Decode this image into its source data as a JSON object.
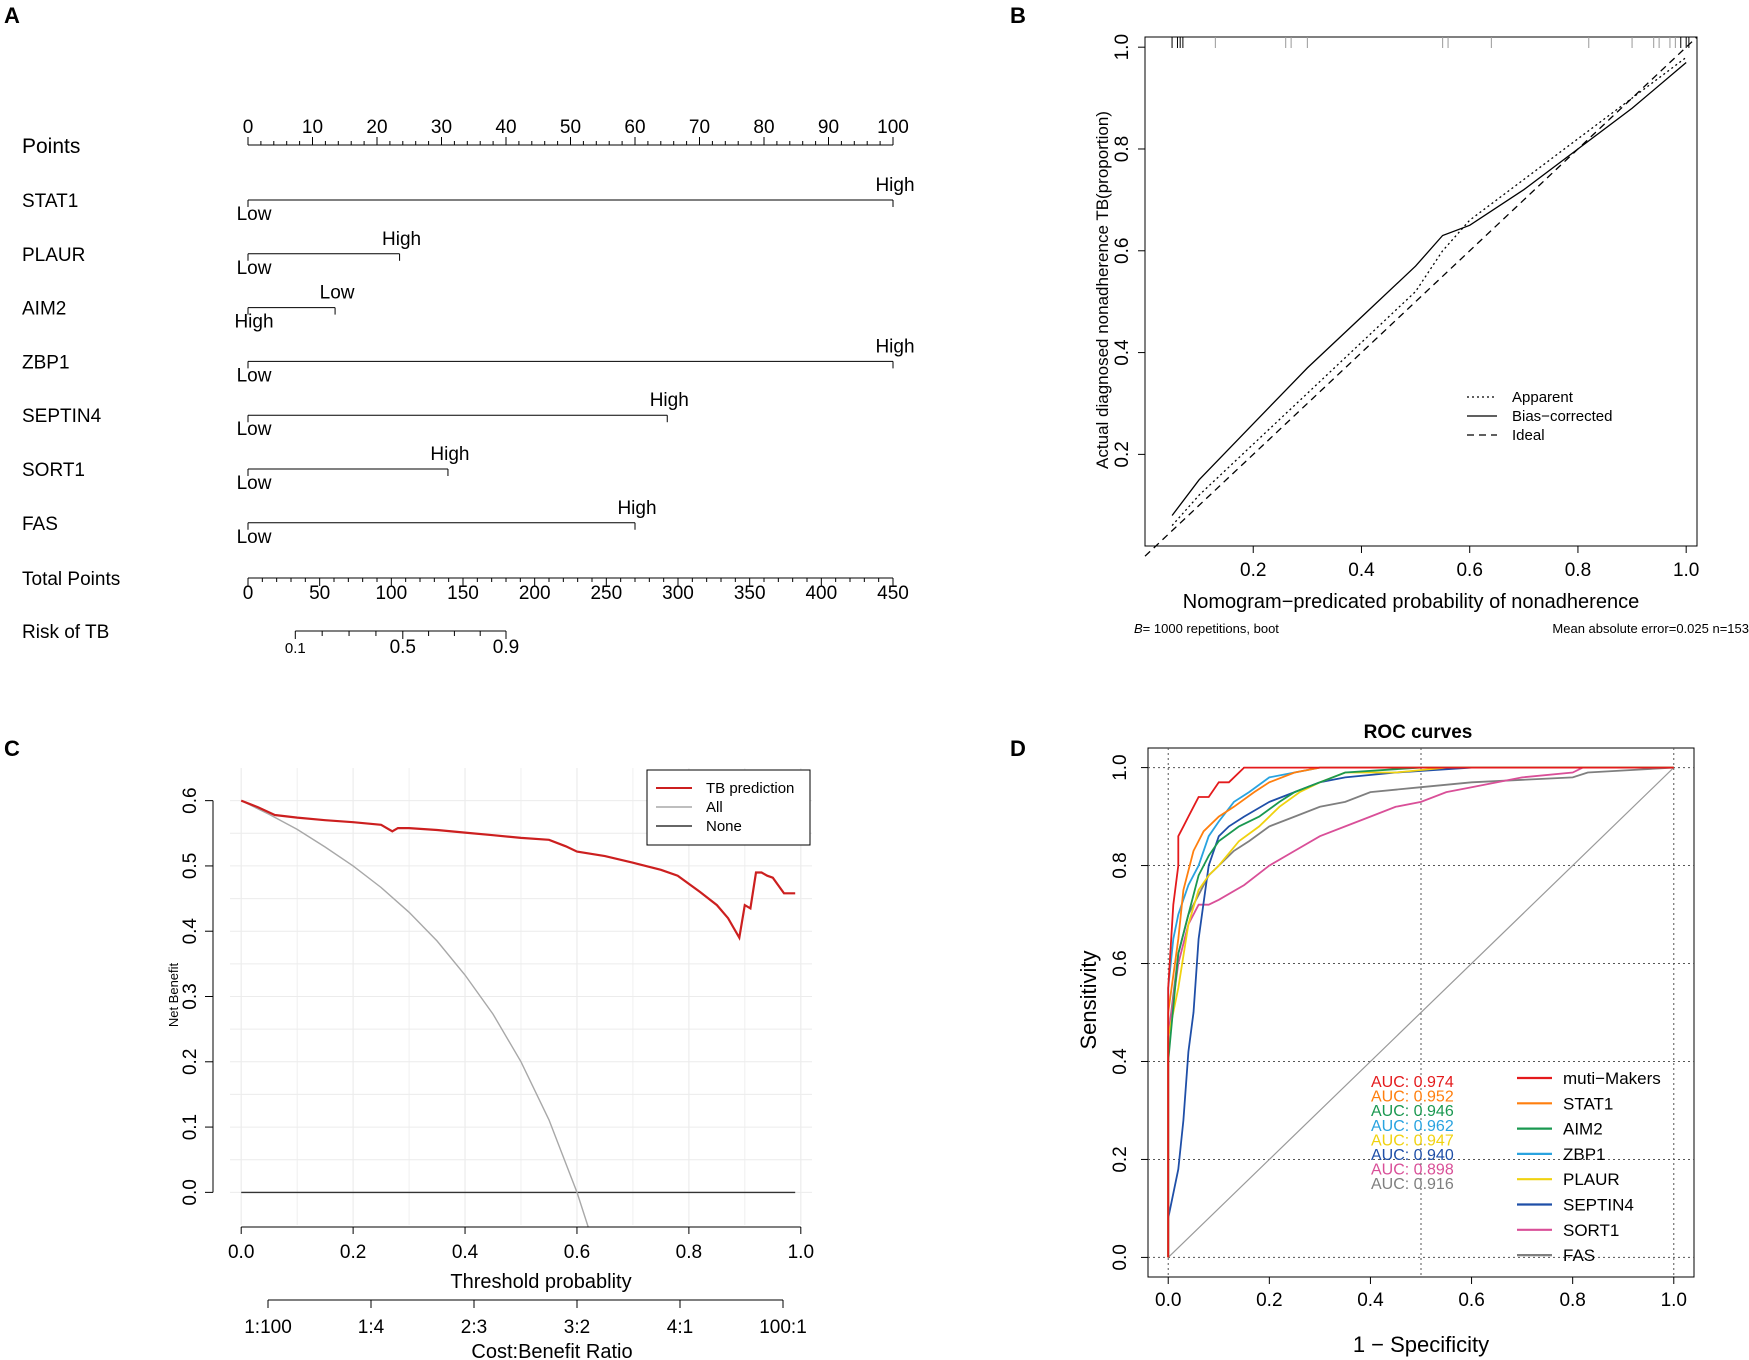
{
  "panel_labels": [
    "A",
    "B",
    "C",
    "D"
  ],
  "nomogram": {
    "points_label": "Points",
    "points_ticks": [
      "0",
      "10",
      "20",
      "30",
      "40",
      "50",
      "60",
      "70",
      "80",
      "90",
      "100"
    ],
    "variables": [
      {
        "name": "STAT1",
        "left": "Low",
        "right": "High",
        "max_points": 100
      },
      {
        "name": "PLAUR",
        "left": "Low",
        "right": "High",
        "max_points": 23.5
      },
      {
        "name": "AIM2",
        "left": "High",
        "right": "Low",
        "max_points": 13.5
      },
      {
        "name": "ZBP1",
        "left": "Low",
        "right": "High",
        "max_points": 100
      },
      {
        "name": "SEPTIN4",
        "left": "Low",
        "right": "High",
        "max_points": 65
      },
      {
        "name": "SORT1",
        "left": "Low",
        "right": "High",
        "max_points": 31
      },
      {
        "name": "FAS",
        "left": "Low",
        "right": "High",
        "max_points": 60
      }
    ],
    "total_label": "Total Points",
    "total_ticks": [
      "0",
      "50",
      "100",
      "150",
      "200",
      "250",
      "300",
      "350",
      "400",
      "450"
    ],
    "risk_label": "Risk of TB",
    "risk_ticks": [
      {
        "label": "0.1",
        "total": 33
      },
      {
        "label": "0.5",
        "total": 108
      },
      {
        "label": "0.9",
        "total": 180
      }
    ]
  },
  "chart_data": [
    {
      "type": "line",
      "title": "",
      "xlabel": "Nomogram−predicated probability of nonadherence",
      "ylabel": "Actual diagnosed nonadherence TB(proportion)",
      "xlim": [
        0.0,
        1.02
      ],
      "ylim": [
        0.02,
        1.02
      ],
      "xticks": [
        "0.2",
        "0.4",
        "0.6",
        "0.8",
        "1.0"
      ],
      "yticks": [
        "0.2",
        "0.4",
        "0.6",
        "0.8",
        "1.0"
      ],
      "footer_left": "= 1000 repetitions, boot",
      "footer_left_prefix": "B",
      "footer_right": "Mean absolute error=0.025 n=153",
      "legend": [
        "Apparent",
        "Bias−corrected",
        "Ideal"
      ],
      "series": [
        {
          "name": "Apparent",
          "x": [
            0.05,
            0.1,
            0.2,
            0.3,
            0.4,
            0.5,
            0.55,
            0.6,
            0.7,
            0.8,
            0.9,
            1.0
          ],
          "y": [
            0.06,
            0.12,
            0.22,
            0.32,
            0.42,
            0.52,
            0.6,
            0.66,
            0.74,
            0.82,
            0.9,
            0.98
          ]
        },
        {
          "name": "Bias−corrected",
          "x": [
            0.05,
            0.1,
            0.2,
            0.3,
            0.4,
            0.5,
            0.55,
            0.6,
            0.7,
            0.8,
            0.9,
            1.0
          ],
          "y": [
            0.08,
            0.15,
            0.26,
            0.37,
            0.47,
            0.57,
            0.63,
            0.65,
            0.72,
            0.8,
            0.88,
            0.97
          ]
        },
        {
          "name": "Ideal",
          "x": [
            0.0,
            1.02
          ],
          "y": [
            0.0,
            1.02
          ]
        }
      ]
    },
    {
      "type": "line",
      "title": "",
      "xlabel": "Threshold probablity",
      "ylabel": "Net Benefit",
      "x2label": "Cost:Benefit Ratio",
      "xlim": [
        -0.02,
        1.02
      ],
      "ylim": [
        -0.05,
        0.65
      ],
      "xticks": [
        "0.0",
        "0.2",
        "0.4",
        "0.6",
        "0.8",
        "1.0"
      ],
      "yticks": [
        "0.0",
        "0.1",
        "0.2",
        "0.3",
        "0.4",
        "0.5",
        "0.6"
      ],
      "ratio_ticks": [
        "1:100",
        "1:4",
        "2:3",
        "3:2",
        "4:1",
        "100:1"
      ],
      "legend": [
        "TB prediction",
        "All",
        "None"
      ],
      "series": [
        {
          "name": "TB prediction",
          "x": [
            0.0,
            0.03,
            0.06,
            0.1,
            0.15,
            0.2,
            0.25,
            0.27,
            0.28,
            0.3,
            0.35,
            0.4,
            0.45,
            0.5,
            0.55,
            0.58,
            0.6,
            0.65,
            0.7,
            0.75,
            0.78,
            0.82,
            0.85,
            0.87,
            0.88,
            0.89,
            0.9,
            0.91,
            0.92,
            0.93,
            0.94,
            0.95,
            0.96,
            0.97,
            0.98,
            0.99
          ],
          "y": [
            0.6,
            0.59,
            0.578,
            0.574,
            0.57,
            0.567,
            0.563,
            0.553,
            0.558,
            0.558,
            0.555,
            0.551,
            0.547,
            0.543,
            0.54,
            0.53,
            0.522,
            0.515,
            0.505,
            0.494,
            0.485,
            0.46,
            0.44,
            0.42,
            0.405,
            0.39,
            0.44,
            0.435,
            0.49,
            0.49,
            0.485,
            0.482,
            0.47,
            0.458,
            0.458,
            0.458
          ]
        },
        {
          "name": "All",
          "x": [
            0.0,
            0.05,
            0.1,
            0.15,
            0.2,
            0.25,
            0.3,
            0.35,
            0.4,
            0.45,
            0.5,
            0.55,
            0.6,
            0.62
          ],
          "y": [
            0.6,
            0.579,
            0.556,
            0.529,
            0.5,
            0.467,
            0.429,
            0.385,
            0.333,
            0.273,
            0.2,
            0.111,
            0.0,
            -0.053
          ]
        },
        {
          "name": "None",
          "x": [
            0.0,
            0.99
          ],
          "y": [
            0.0,
            0.0
          ]
        }
      ]
    },
    {
      "type": "line",
      "title": "ROC curves",
      "xlabel": "1 − Specificity",
      "ylabel": "Sensitivity",
      "xlim": [
        -0.04,
        1.04
      ],
      "ylim": [
        -0.04,
        1.04
      ],
      "xticks": [
        "0.0",
        "0.2",
        "0.4",
        "0.6",
        "0.8",
        "1.0"
      ],
      "yticks": [
        "0.0",
        "0.2",
        "0.4",
        "0.6",
        "0.8",
        "1.0"
      ],
      "series": [
        {
          "name": "muti−Makers",
          "auc": "AUC: 0.974",
          "color": "#e41a1c",
          "x": [
            0,
            0,
            0.01,
            0.02,
            0.02,
            0.03,
            0.04,
            0.05,
            0.06,
            0.08,
            0.1,
            0.12,
            0.15,
            0.2,
            0.3,
            0.5,
            0.8,
            1.0
          ],
          "y": [
            0,
            0.55,
            0.72,
            0.8,
            0.86,
            0.88,
            0.9,
            0.92,
            0.94,
            0.94,
            0.97,
            0.97,
            1,
            1,
            1,
            1,
            1,
            1
          ]
        },
        {
          "name": "STAT1",
          "auc": "AUC: 0.952",
          "color": "#ff7f0e",
          "x": [
            0,
            0,
            0.02,
            0.03,
            0.05,
            0.07,
            0.1,
            0.13,
            0.17,
            0.2,
            0.25,
            0.3,
            0.4,
            0.5,
            0.8,
            1.0
          ],
          "y": [
            0,
            0.5,
            0.65,
            0.75,
            0.83,
            0.87,
            0.9,
            0.92,
            0.95,
            0.97,
            0.99,
            1,
            1,
            1,
            1,
            1
          ]
        },
        {
          "name": "AIM2",
          "auc": "AUC: 0.946",
          "color": "#1a9850",
          "x": [
            0,
            0,
            0.02,
            0.04,
            0.06,
            0.08,
            0.1,
            0.14,
            0.18,
            0.22,
            0.25,
            0.3,
            0.35,
            0.5,
            0.8,
            1.0
          ],
          "y": [
            0,
            0.4,
            0.62,
            0.7,
            0.78,
            0.82,
            0.85,
            0.88,
            0.9,
            0.93,
            0.95,
            0.97,
            0.99,
            1,
            1,
            1
          ]
        },
        {
          "name": "ZBP1",
          "auc": "AUC: 0.962",
          "color": "#29a3e0",
          "x": [
            0,
            0,
            0.01,
            0.02,
            0.04,
            0.06,
            0.08,
            0.1,
            0.13,
            0.16,
            0.2,
            0.25,
            0.3,
            0.4,
            0.6,
            0.8,
            1.0
          ],
          "y": [
            0,
            0.55,
            0.65,
            0.7,
            0.76,
            0.8,
            0.86,
            0.89,
            0.93,
            0.95,
            0.98,
            0.99,
            1,
            1,
            1,
            1,
            1
          ]
        },
        {
          "name": "PLAUR",
          "auc": "AUC: 0.947",
          "color": "#f0d20f",
          "x": [
            0,
            0,
            0.02,
            0.04,
            0.06,
            0.08,
            0.1,
            0.14,
            0.18,
            0.22,
            0.26,
            0.3,
            0.35,
            0.45,
            0.55,
            0.8,
            1.0
          ],
          "y": [
            0,
            0.45,
            0.55,
            0.68,
            0.75,
            0.78,
            0.8,
            0.85,
            0.88,
            0.92,
            0.95,
            0.97,
            0.99,
            0.99,
            1,
            1,
            1
          ]
        },
        {
          "name": "SEPTIN4",
          "auc": "AUC: 0.940",
          "color": "#1f4fa8",
          "x": [
            0,
            0,
            0.02,
            0.03,
            0.04,
            0.05,
            0.06,
            0.08,
            0.1,
            0.12,
            0.15,
            0.2,
            0.25,
            0.3,
            0.35,
            0.45,
            0.6,
            0.8,
            1.0
          ],
          "y": [
            0,
            0.08,
            0.18,
            0.28,
            0.42,
            0.5,
            0.65,
            0.8,
            0.86,
            0.88,
            0.9,
            0.93,
            0.95,
            0.97,
            0.98,
            0.99,
            1,
            1,
            1
          ]
        },
        {
          "name": "SORT1",
          "auc": "AUC: 0.898",
          "color": "#d94f98",
          "x": [
            0,
            0,
            0.02,
            0.04,
            0.06,
            0.08,
            0.1,
            0.15,
            0.2,
            0.25,
            0.3,
            0.35,
            0.4,
            0.45,
            0.5,
            0.55,
            0.6,
            0.7,
            0.8,
            0.82,
            1.0
          ],
          "y": [
            0,
            0.45,
            0.6,
            0.68,
            0.72,
            0.72,
            0.73,
            0.76,
            0.8,
            0.83,
            0.86,
            0.88,
            0.9,
            0.92,
            0.93,
            0.95,
            0.96,
            0.98,
            0.99,
            1,
            1
          ]
        },
        {
          "name": "FAS",
          "auc": "AUC: 0.916",
          "color": "#7f7f7f",
          "x": [
            0,
            0,
            0.02,
            0.04,
            0.06,
            0.08,
            0.1,
            0.13,
            0.16,
            0.2,
            0.25,
            0.3,
            0.35,
            0.4,
            0.5,
            0.6,
            0.8,
            0.83,
            1.0
          ],
          "y": [
            0,
            0.45,
            0.62,
            0.7,
            0.74,
            0.78,
            0.8,
            0.83,
            0.85,
            0.88,
            0.9,
            0.92,
            0.93,
            0.95,
            0.96,
            0.97,
            0.98,
            0.99,
            1
          ]
        }
      ]
    }
  ]
}
